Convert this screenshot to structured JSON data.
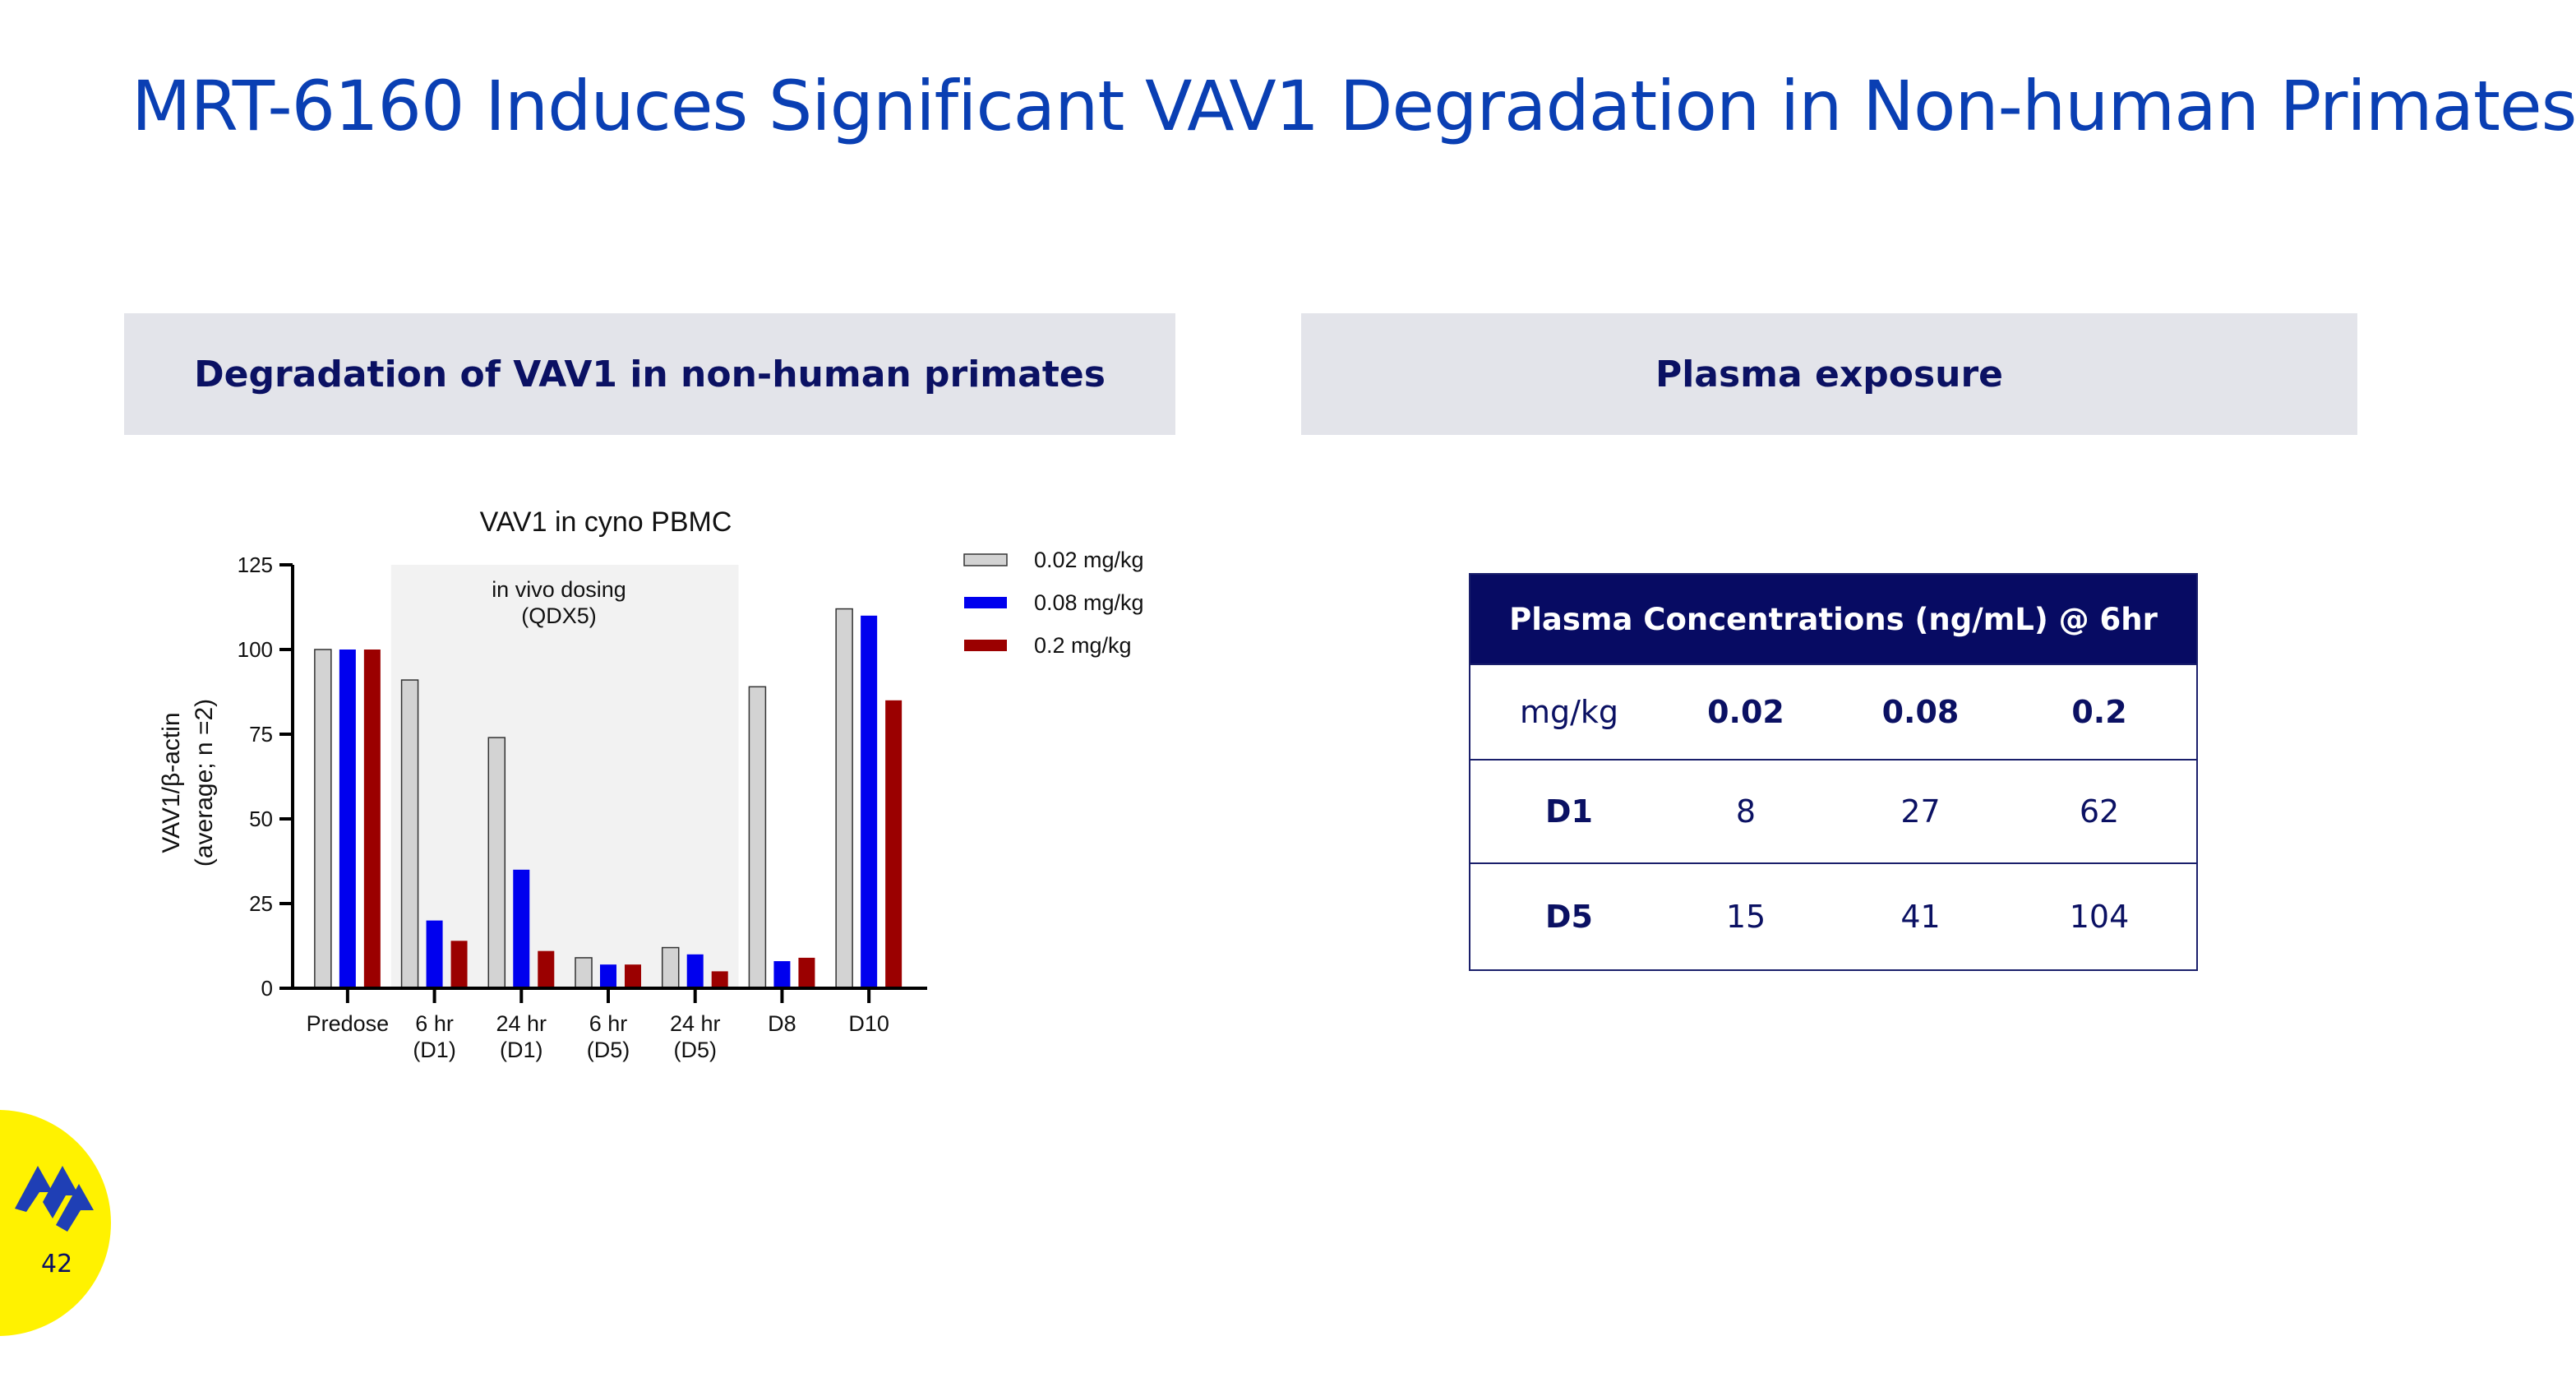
{
  "slide": {
    "title": "MRT-6160 Induces Significant VAV1 Degradation in Non-human Primates",
    "left_header": "Degradation of VAV1 in non-human primates",
    "right_header": "Plasma exposure",
    "page_number": "42"
  },
  "chart_data": {
    "type": "bar",
    "title": "VAV1 in cyno PBMC",
    "ylabel_line1": "VAV1/β-actin",
    "ylabel_line2": "(average; n =2)",
    "ylim": [
      0,
      125
    ],
    "yticks": [
      0,
      25,
      50,
      75,
      100,
      125
    ],
    "categories": [
      {
        "line1": "Predose",
        "line2": ""
      },
      {
        "line1": "6 hr",
        "line2": "(D1)"
      },
      {
        "line1": "24 hr",
        "line2": "(D1)"
      },
      {
        "line1": "6 hr",
        "line2": "(D5)"
      },
      {
        "line1": "24 hr",
        "line2": "(D5)"
      },
      {
        "line1": "D8",
        "line2": ""
      },
      {
        "line1": "D10",
        "line2": ""
      }
    ],
    "series": [
      {
        "name": "0.02 mg/kg",
        "color": "#d3d3d3",
        "values": [
          100,
          91,
          74,
          9,
          12,
          89,
          112
        ]
      },
      {
        "name": "0.08 mg/kg",
        "color": "#0000ee",
        "values": [
          100,
          20,
          35,
          7,
          10,
          8,
          110
        ]
      },
      {
        "name": "0.2 mg/kg",
        "color": "#9b0000",
        "values": [
          100,
          14,
          11,
          7,
          5,
          9,
          85
        ]
      }
    ],
    "annotation": {
      "line1": "in vivo dosing",
      "line2": "(QDX5)",
      "shaded_categories": [
        1,
        4
      ]
    }
  },
  "table": {
    "header": "Plasma Concentrations (ng/mL) @ 6hr",
    "columns": [
      "mg/kg",
      "0.02",
      "0.08",
      "0.2"
    ],
    "rows": [
      {
        "label": "D1",
        "values": [
          "8",
          "27",
          "62"
        ]
      },
      {
        "label": "D5",
        "values": [
          "15",
          "41",
          "104"
        ]
      }
    ]
  },
  "colors": {
    "title": "#0a3fb3",
    "header_bg": "#e3e4ea",
    "header_text": "#0b1163",
    "table_head_bg": "#070b63",
    "badge": "#fff200"
  }
}
